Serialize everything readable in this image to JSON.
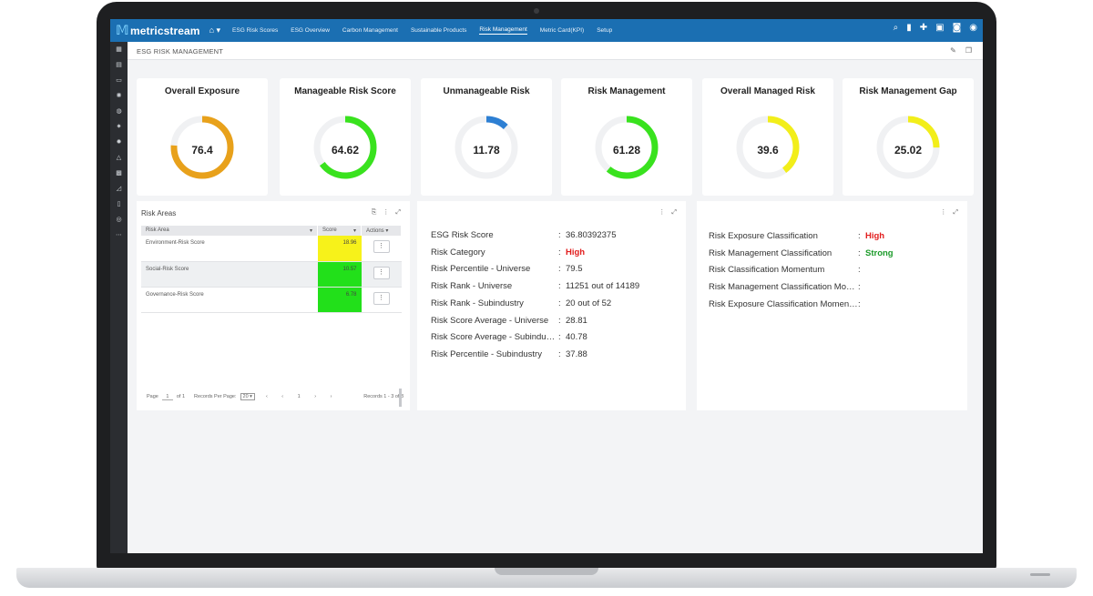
{
  "app": {
    "brand": "metricstream"
  },
  "nav": {
    "home_caret": "⌂ ▾",
    "items": [
      "ESG Risk Scores",
      "ESG Overview",
      "Carbon Management",
      "Sustainable Products",
      "Risk Management",
      "Metric Card(KPI)",
      "Setup"
    ],
    "active": "Risk Management"
  },
  "page": {
    "title": "ESG RISK MANAGEMENT"
  },
  "kpis": [
    {
      "title": "Overall Exposure",
      "value": "76.4",
      "fraction": 0.76,
      "color": "#e8a11b"
    },
    {
      "title": "Manageable Risk Score",
      "value": "64.62",
      "fraction": 0.65,
      "color": "#39e21e"
    },
    {
      "title": "Unmanageable Risk",
      "value": "11.78",
      "fraction": 0.12,
      "color": "#2d7fd3"
    },
    {
      "title": "Risk Management",
      "value": "61.28",
      "fraction": 0.61,
      "color": "#39e21e"
    },
    {
      "title": "Overall Managed Risk",
      "value": "39.6",
      "fraction": 0.4,
      "color": "#f2ee1a"
    },
    {
      "title": "Risk Management Gap",
      "value": "25.02",
      "fraction": 0.25,
      "color": "#f2ee1a"
    }
  ],
  "risk_areas": {
    "title": "Risk Areas",
    "columns": [
      "Risk Area",
      "Score",
      "Actions"
    ],
    "rows": [
      {
        "area": "Environment-Risk Score",
        "score": "18.96",
        "color": "yellow"
      },
      {
        "area": "Social-Risk Score",
        "score": "10.57",
        "color": "green"
      },
      {
        "area": "Governance-Risk Score",
        "score": "6.78",
        "color": "green"
      }
    ],
    "pager": {
      "page_label": "Page",
      "page_value": "1",
      "of_label": "of 1",
      "records_per_page_label": "Records Per Page:",
      "records_per_page": "20",
      "arrows": "‹ ‹ 1 › ›",
      "records_info": "Records 1 - 3 of 3"
    }
  },
  "scores": [
    {
      "label": "ESG Risk Score",
      "value": "36.80392375"
    },
    {
      "label": "Risk Category",
      "value": "High",
      "style": "red"
    },
    {
      "label": "Risk Percentile - Universe",
      "value": "79.5"
    },
    {
      "label": "Risk Rank - Universe",
      "value": "11251 out of 14189"
    },
    {
      "label": "Risk Rank - Subindustry",
      "value": "20 out of 52"
    },
    {
      "label": "Risk Score Average - Universe",
      "value": "28.81"
    },
    {
      "label": "Risk Score Average - Subindustry",
      "value": "40.78"
    },
    {
      "label": "Risk Percentile - Subindustry",
      "value": "37.88"
    }
  ],
  "classification": [
    {
      "label": "Risk Exposure Classification",
      "value": "High",
      "style": "red"
    },
    {
      "label": "Risk Management Classification",
      "value": "Strong",
      "style": "grn"
    },
    {
      "label": "Risk Classification Momentum",
      "value": ""
    },
    {
      "label": "Risk Management Classification Momentum",
      "value": ""
    },
    {
      "label": "Risk Exposure Classification Momentum",
      "value": ""
    }
  ]
}
